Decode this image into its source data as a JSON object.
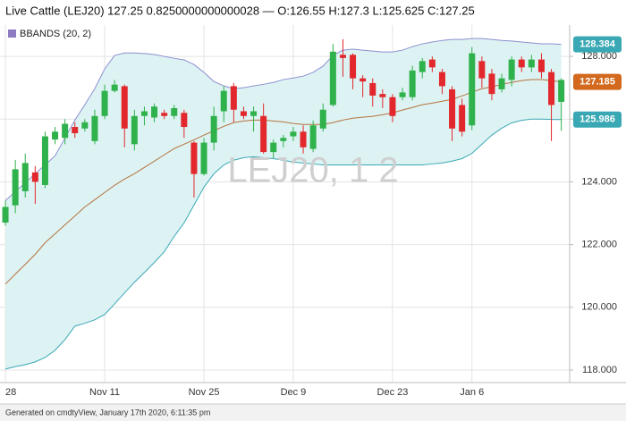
{
  "chart_data": {
    "type": "candlestick",
    "title": "Live Cattle (LEJ20) 127.25 0.8250000000000028 — O:126.55 H:127.3 L:125.625 C:127.25",
    "watermark": "LEJ20, 1 2",
    "footer": "Generated on cmdtyView, January 17th 2020, 6:11:35 pm",
    "categories": [
      "28",
      null,
      null,
      null,
      null,
      null,
      null,
      null,
      null,
      null,
      "Nov 11",
      null,
      null,
      null,
      null,
      null,
      null,
      null,
      null,
      null,
      "Nov 25",
      null,
      null,
      null,
      null,
      null,
      null,
      null,
      null,
      "Dec 9",
      null,
      null,
      null,
      null,
      null,
      null,
      null,
      null,
      null,
      "Dec 23",
      null,
      null,
      null,
      null,
      null,
      null,
      null,
      "Jan 6",
      null,
      null,
      null,
      null,
      null,
      null,
      null,
      null,
      null
    ],
    "open": [
      122.7,
      123.25,
      123.7,
      124.3,
      123.9,
      125.35,
      125.4,
      125.75,
      125.7,
      125.3,
      126.1,
      126.9,
      127.05,
      125.2,
      126.1,
      126.05,
      126.2,
      126.1,
      126.2,
      125.25,
      124.25,
      125.25,
      126.25,
      127.05,
      126.25,
      126.1,
      126.1,
      124.95,
      125.3,
      125.45,
      125.6,
      125.05,
      125.7,
      126.45,
      128.05,
      128.05,
      127.3,
      127.15,
      126.8,
      126.7,
      126.7,
      126.7,
      127.5,
      127.9,
      127.5,
      126.95,
      126.45,
      125.8,
      127.85,
      127.45,
      126.95,
      127.25,
      127.9,
      127.65,
      127.9,
      127.5,
      126.55
    ],
    "high": [
      123.4,
      124.7,
      124.9,
      124.5,
      125.6,
      125.75,
      126.0,
      125.9,
      126.0,
      126.3,
      127.1,
      127.25,
      127.1,
      126.3,
      126.4,
      126.5,
      126.3,
      126.45,
      126.3,
      125.3,
      125.4,
      126.4,
      127.05,
      127.15,
      126.4,
      126.4,
      126.5,
      125.35,
      125.5,
      125.75,
      125.8,
      125.95,
      126.5,
      128.4,
      128.55,
      128.1,
      127.4,
      127.3,
      126.95,
      126.8,
      127.0,
      127.7,
      127.95,
      128.0,
      127.6,
      127.05,
      126.65,
      128.3,
      128.0,
      127.6,
      127.45,
      128.0,
      128.0,
      128.05,
      128.1,
      127.6,
      127.3
    ],
    "low": [
      122.6,
      123.0,
      123.5,
      123.3,
      123.8,
      125.2,
      125.2,
      125.4,
      125.6,
      125.2,
      126.0,
      126.85,
      125.1,
      125.0,
      125.8,
      125.9,
      126.0,
      126.0,
      125.4,
      123.5,
      124.2,
      125.0,
      125.9,
      125.9,
      126.0,
      125.6,
      124.9,
      124.75,
      125.1,
      125.3,
      124.9,
      124.95,
      125.6,
      126.4,
      127.35,
      126.95,
      126.7,
      126.4,
      126.35,
      125.9,
      126.6,
      126.6,
      127.3,
      127.5,
      126.8,
      125.3,
      125.45,
      125.65,
      127.0,
      126.6,
      126.85,
      127.05,
      127.5,
      127.5,
      127.3,
      125.3,
      125.625
    ],
    "close": [
      123.2,
      124.4,
      124.6,
      124.0,
      125.45,
      125.6,
      125.85,
      125.55,
      125.9,
      126.1,
      126.9,
      127.1,
      125.7,
      126.1,
      126.25,
      126.4,
      126.1,
      126.35,
      125.75,
      124.25,
      125.25,
      126.1,
      126.9,
      126.3,
      126.1,
      126.25,
      124.95,
      125.25,
      125.4,
      125.6,
      125.1,
      125.8,
      126.3,
      128.15,
      127.95,
      127.3,
      127.2,
      126.75,
      126.7,
      126.1,
      126.85,
      127.55,
      127.85,
      127.65,
      127.05,
      125.7,
      125.6,
      128.1,
      127.3,
      126.8,
      127.3,
      127.9,
      127.65,
      127.9,
      127.5,
      126.45,
      127.25
    ],
    "up_color": "#2fb14b",
    "down_color": "#e2282c",
    "indicator": {
      "name": "BBANDS (20, 2)",
      "color": "#8e7cc3",
      "fill": "#ddf3f3",
      "upper_color": "#8d8fd0",
      "middle_color": "#b5723f",
      "lower_color": "#39a8b4",
      "upper": [
        123.4,
        123.69,
        123.97,
        124.26,
        124.54,
        124.83,
        125.4,
        125.97,
        126.46,
        126.97,
        127.6,
        128.03,
        128.11,
        128.11,
        128.09,
        128.06,
        128.0,
        127.94,
        127.89,
        127.74,
        127.49,
        127.2,
        127.06,
        126.97,
        127.0,
        127.06,
        127.11,
        127.17,
        127.26,
        127.31,
        127.37,
        127.49,
        127.69,
        128.03,
        128.2,
        128.23,
        128.2,
        128.17,
        128.14,
        128.14,
        128.2,
        128.31,
        128.4,
        128.46,
        128.51,
        128.54,
        128.54,
        128.57,
        128.57,
        128.54,
        128.51,
        128.49,
        128.46,
        128.43,
        128.4,
        128.4,
        128.384
      ],
      "middle": [
        120.74,
        121.06,
        121.37,
        121.69,
        122.06,
        122.34,
        122.63,
        122.91,
        123.2,
        123.43,
        123.66,
        123.89,
        124.09,
        124.26,
        124.46,
        124.66,
        124.86,
        125.06,
        125.2,
        125.34,
        125.49,
        125.63,
        125.77,
        125.89,
        125.94,
        125.97,
        125.97,
        125.94,
        125.91,
        125.86,
        125.83,
        125.83,
        125.83,
        125.89,
        125.97,
        126.03,
        126.06,
        126.09,
        126.14,
        126.2,
        126.29,
        126.37,
        126.46,
        126.51,
        126.57,
        126.63,
        126.74,
        126.86,
        126.97,
        127.03,
        127.11,
        127.17,
        127.23,
        127.26,
        127.26,
        127.23,
        127.185
      ],
      "lower": [
        118.03,
        118.11,
        118.17,
        118.26,
        118.4,
        118.63,
        118.97,
        119.4,
        119.49,
        119.6,
        119.77,
        120.11,
        120.46,
        120.8,
        121.11,
        121.43,
        121.77,
        122.26,
        122.69,
        123.26,
        123.83,
        124.26,
        124.54,
        124.69,
        124.77,
        124.8,
        124.77,
        124.74,
        124.69,
        124.63,
        124.6,
        124.57,
        124.54,
        124.54,
        124.54,
        124.54,
        124.54,
        124.54,
        124.54,
        124.54,
        124.54,
        124.54,
        124.54,
        124.57,
        124.6,
        124.66,
        124.74,
        124.91,
        125.2,
        125.49,
        125.71,
        125.88,
        125.96,
        126.0,
        126.0,
        125.99,
        125.986
      ],
      "last_upper": 128.384,
      "last_middle": 127.185,
      "last_lower": 125.986
    },
    "ylim": [
      117.6,
      129.0
    ],
    "yticks": [
      {
        "value": 118,
        "label": "118.000"
      },
      {
        "value": 120,
        "label": "120.000"
      },
      {
        "value": 122,
        "label": "122.000"
      },
      {
        "value": 124,
        "label": "124.000"
      },
      {
        "value": 126,
        "label": "126.000"
      },
      {
        "value": 128,
        "label": "128.000"
      }
    ],
    "grid": true
  }
}
